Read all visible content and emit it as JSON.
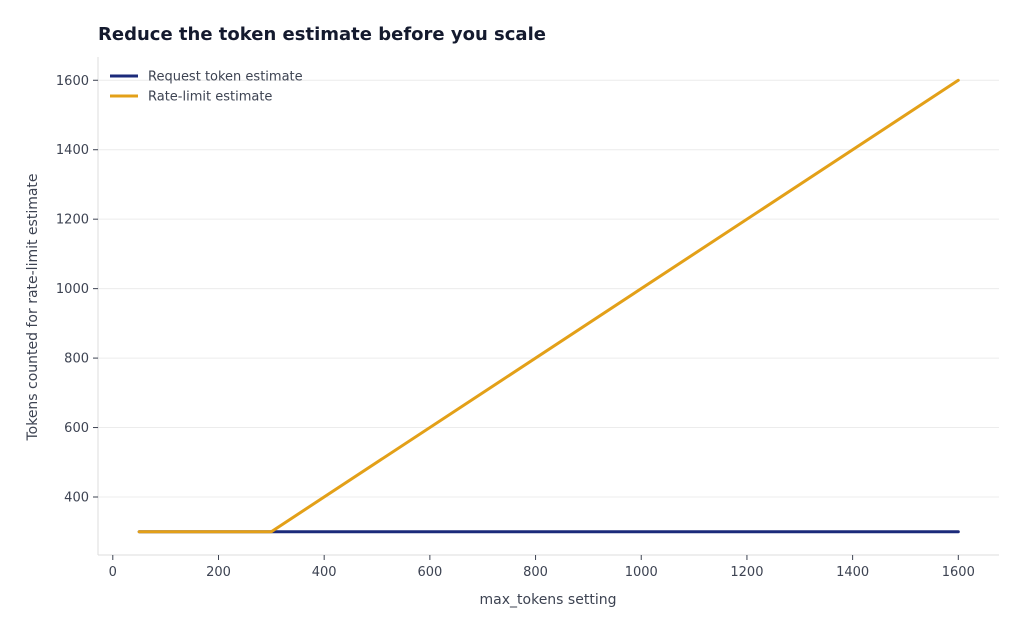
{
  "chart_data": {
    "type": "line",
    "title": "Reduce the token estimate before you scale",
    "xlabel": "max_tokens setting",
    "ylabel": "Tokens counted for rate-limit estimate",
    "xlim": [
      -28,
      1677
    ],
    "ylim": [
      233,
      1667
    ],
    "xticks": [
      0,
      200,
      400,
      600,
      800,
      1000,
      1200,
      1400,
      1600
    ],
    "yticks": [
      400,
      600,
      800,
      1000,
      1200,
      1400,
      1600
    ],
    "grid": "horizontal",
    "legend_position": "top-left",
    "series": [
      {
        "name": "Request token estimate",
        "color": "#1b2a7a",
        "x": [
          50,
          300,
          1600
        ],
        "y": [
          300,
          300,
          300
        ]
      },
      {
        "name": "Rate-limit estimate",
        "color": "#e3a018",
        "x": [
          50,
          300,
          1600
        ],
        "y": [
          300,
          300,
          1600
        ]
      }
    ]
  }
}
